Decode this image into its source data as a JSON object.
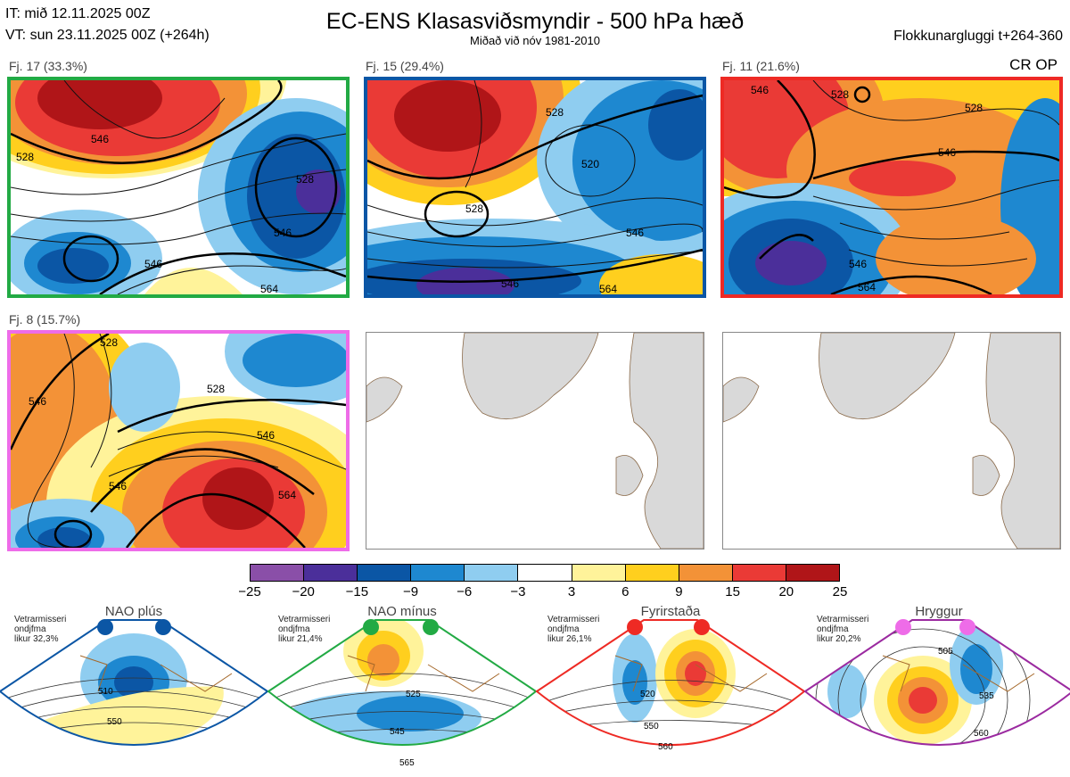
{
  "header": {
    "it_line": "IT: mið 12.11.2025 00Z",
    "vt_line": "VT: sun 23.11.2025 00Z  (+264h)",
    "title": "EC-ENS Klasasviðsmyndir - 500 hPa hæð",
    "subtitle": "Miðað við nóv 1981-2010",
    "window": "Flokkunargluggi t+264-360",
    "cr_op": "CR OP"
  },
  "colors": {
    "cluster1": "#22aa44",
    "cluster2": "#0b56a5",
    "cluster3": "#ee2a24",
    "cluster4": "#ee6ce8",
    "nao_plus": "#0b56a5",
    "nao_minus": "#22aa44",
    "blocking": "#ee2a24",
    "ridge": "#ee6ce8",
    "land": "#d9d9d9",
    "coast": "#8a6a4a"
  },
  "clusters": [
    {
      "label": "Fj. 17 (33.3%)",
      "contour_labels": [
        "546",
        "528",
        "546",
        "546",
        "528",
        "564"
      ]
    },
    {
      "label": "Fj. 15 (29.4%)",
      "contour_labels": [
        "528",
        "520",
        "528",
        "546",
        "546",
        "564"
      ]
    },
    {
      "label": "Fj. 11 (21.6%)",
      "contour_labels": [
        "546",
        "528",
        "528",
        "546",
        "546",
        "564"
      ]
    },
    {
      "label": "Fj. 8 (15.7%)",
      "contour_labels": [
        "528",
        "546",
        "528",
        "546",
        "546",
        "564"
      ]
    }
  ],
  "colorbar": {
    "ticks": [
      "−25",
      "−20",
      "−15",
      "−9",
      "−6",
      "−3",
      "3",
      "6",
      "9",
      "15",
      "20",
      "25"
    ],
    "colors": [
      "#8a4fa8",
      "#4b2f9a",
      "#0b56a5",
      "#1e88d0",
      "#8fcdf0",
      "#ffffff",
      "#fff39a",
      "#ffcf1e",
      "#f39237",
      "#ea3a36",
      "#b01518"
    ]
  },
  "regimes": [
    {
      "name": "NAO plús",
      "note": "Vetrarmisseri\nondjfma\nlikur 32,3%",
      "labels": [
        "510",
        "550"
      ]
    },
    {
      "name": "NAO mínus",
      "note": "Vetrarmisseri\nondjfma\nlikur 21,4%",
      "labels": [
        "525",
        "545",
        "565"
      ]
    },
    {
      "name": "Fyrirstaða",
      "note": "Vetrarmisseri\nondjfma\nlikur 26,1%",
      "labels": [
        "520",
        "550",
        "560"
      ]
    },
    {
      "name": "Hryggur",
      "note": "Vetrarmisseri\nondjfma\nlikur 20,2%",
      "labels": [
        "505",
        "535",
        "560"
      ]
    }
  ]
}
